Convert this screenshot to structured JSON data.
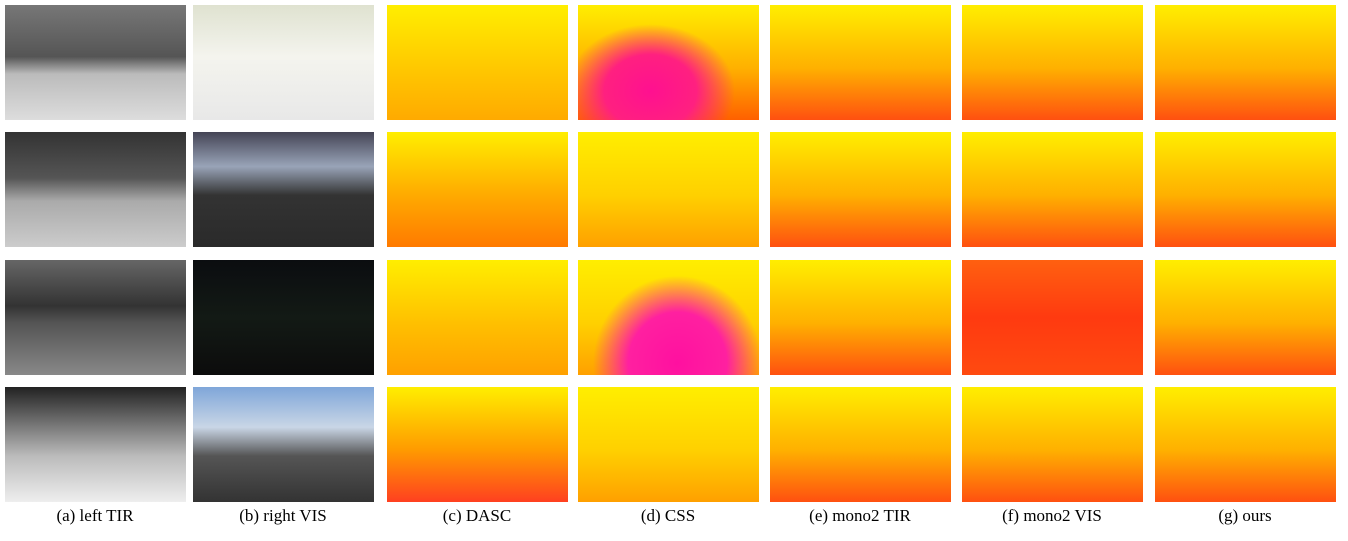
{
  "figure": {
    "captions": [
      "(a) left TIR",
      "(b) right VIS",
      "(c) DASC",
      "(d) CSS",
      "(e) mono2 TIR",
      "(f) mono2 VIS",
      "(g) ours"
    ]
  }
}
